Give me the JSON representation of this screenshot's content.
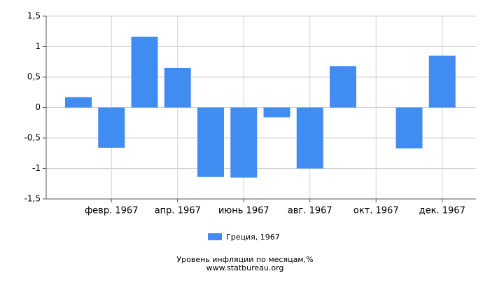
{
  "chart_data": {
    "type": "bar",
    "title": "Уровень инфляции по месяцам,%",
    "subtitle": "www.statbureau.org",
    "categories": [
      null,
      "февр. 1967",
      null,
      "апр. 1967",
      null,
      "июнь 1967",
      null,
      "авг. 1967",
      null,
      "окт. 1967",
      null,
      "дек. 1967"
    ],
    "series": [
      {
        "name": "Греция, 1967",
        "color": "#418cf0",
        "values": [
          0.17,
          -0.66,
          1.16,
          0.65,
          -1.14,
          -1.15,
          -0.16,
          -1.0,
          0.68,
          0,
          -0.67,
          0.85
        ]
      }
    ],
    "ylim": [
      -1.5,
      1.5
    ],
    "yticks": [
      {
        "value": -1.5,
        "label": "-1,5"
      },
      -1,
      {
        "value": -0.5,
        "label": "-0,5"
      },
      0,
      {
        "value": 0.5,
        "label": "0,5"
      },
      1,
      {
        "value": 1.5,
        "label": "1,5"
      }
    ],
    "grid": true
  }
}
